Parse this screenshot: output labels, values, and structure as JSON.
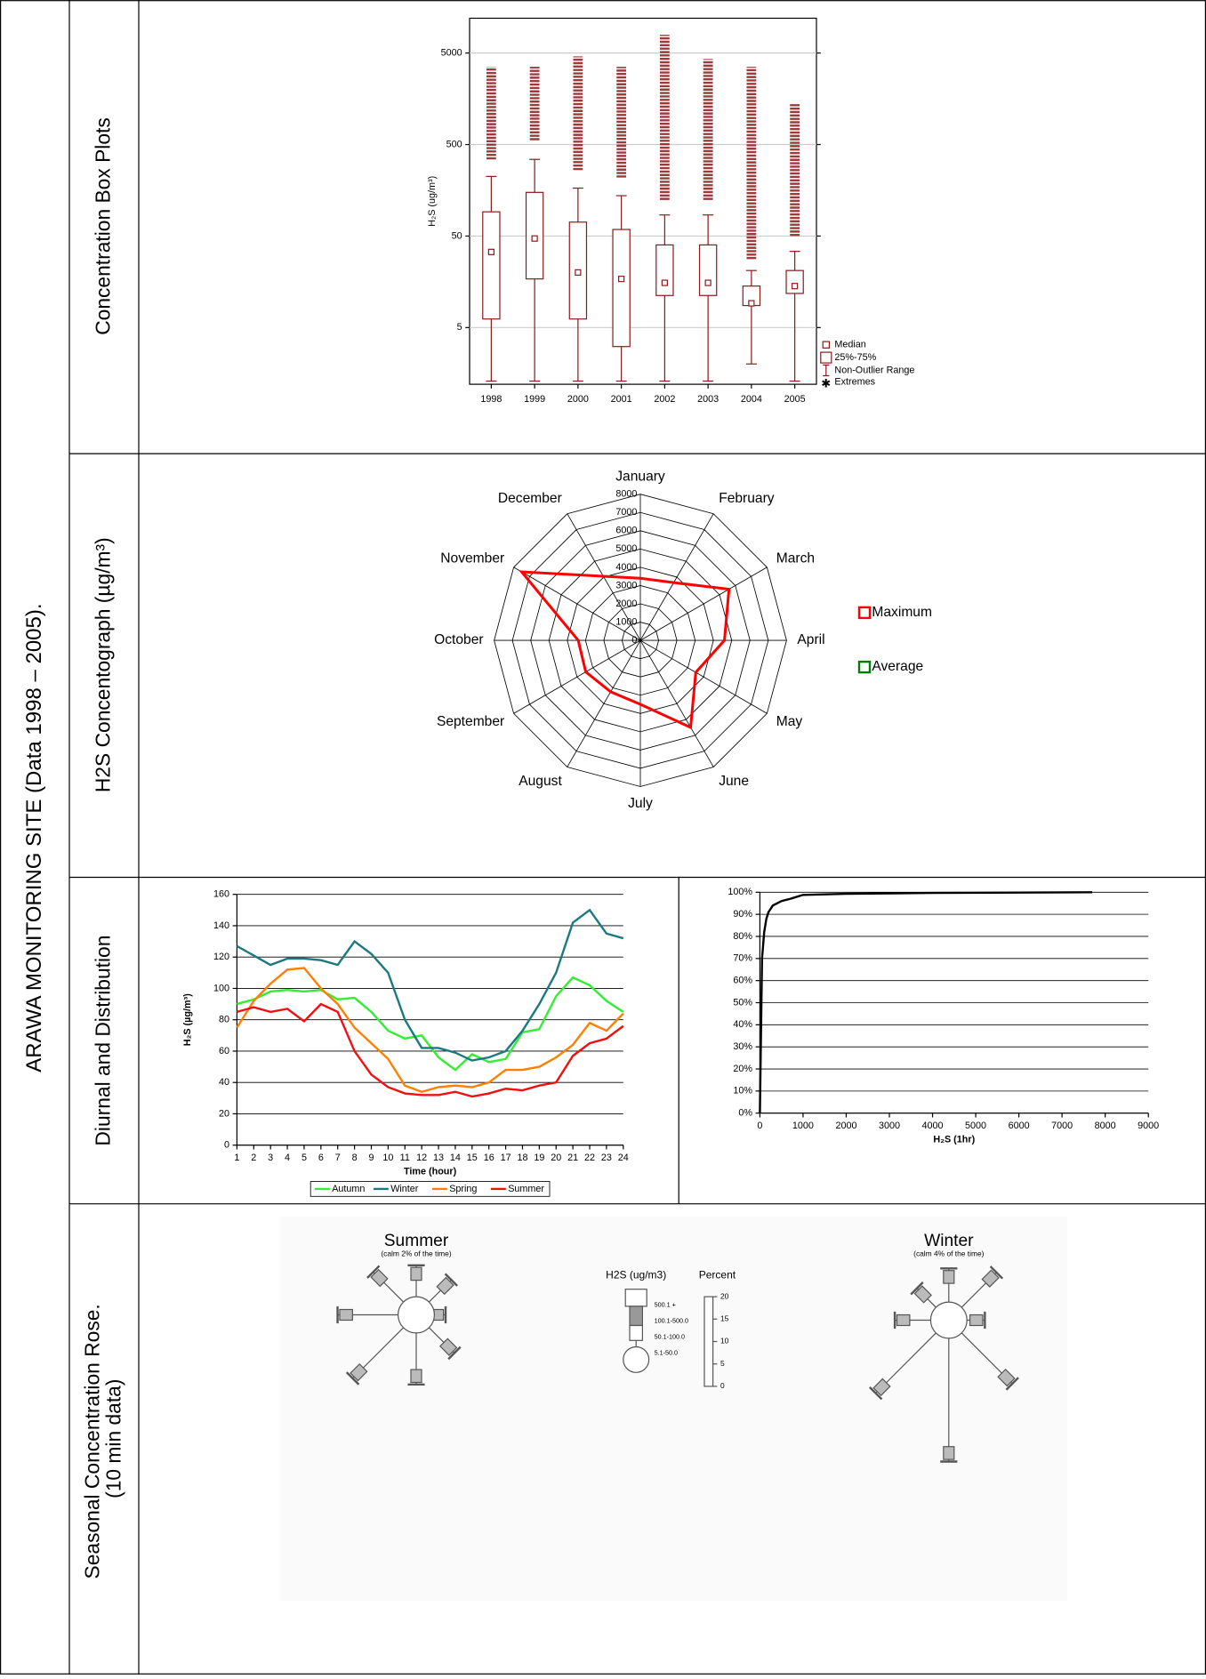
{
  "document": {
    "side_title": "ARAWA MONITORING SITE (Data 1998 – 2005).",
    "row_labels": [
      "Concentration Box Plots",
      "H2S Concentograph (µg/m³)",
      "Diurnal and Distribution",
      [
        "Seasonal Concentration Rose.",
        "(10 min data)"
      ]
    ]
  },
  "chart_data": [
    {
      "type": "box",
      "ylabel": "H₂S (ug/m³)",
      "categories": [
        "1998",
        "1999",
        "2000",
        "2001",
        "2002",
        "2003",
        "2004",
        "2005"
      ],
      "color": "#8b1a1a",
      "log_scale": true,
      "grid": true,
      "ylim": [
        1.2,
        12000
      ],
      "yticks": [
        5,
        50,
        500,
        5000
      ],
      "median": [
        33.5,
        47,
        20,
        17,
        15.4,
        15.4,
        9.2,
        14.2
      ],
      "q1": [
        6.2,
        17,
        6.2,
        3.1,
        11.2,
        11.2,
        8.7,
        11.8
      ],
      "q3": [
        92,
        150,
        71,
        59,
        40,
        40,
        14.2,
        21
      ],
      "whisker_low": [
        1.3,
        1.3,
        1.3,
        1.3,
        1.3,
        1.3,
        2,
        1.3
      ],
      "whisker_high": [
        224,
        344,
        167,
        138,
        85,
        85,
        21,
        34
      ],
      "extremes_low": [
        344,
        557,
        263,
        218,
        124,
        124,
        28,
        50
      ],
      "extremes_high": [
        3530,
        3530,
        4600,
        3530,
        7900,
        4300,
        3530,
        1420
      ],
      "legend": [
        "Median",
        "25%-75%",
        "Non-Outlier Range",
        "Extremes"
      ]
    },
    {
      "type": "radar",
      "categories": [
        "January",
        "February",
        "March",
        "April",
        "May",
        "June",
        "July",
        "August",
        "September",
        "October",
        "November",
        "December"
      ],
      "rlim": [
        0,
        8000
      ],
      "rticks": [
        0,
        1000,
        2000,
        3000,
        4000,
        5000,
        6000,
        7000,
        8000
      ],
      "series": [
        {
          "name": "Maximum",
          "color": "#ff0000",
          "values": [
            3400,
            3650,
            5600,
            4600,
            3500,
            5500,
            3500,
            3250,
            3450,
            3400,
            7500,
            4050
          ]
        },
        {
          "name": "Average",
          "color": "#008000",
          "values": [
            null,
            null,
            null,
            null,
            null,
            null,
            null,
            null,
            null,
            null,
            null,
            null
          ]
        }
      ]
    },
    {
      "type": "line",
      "xlabel": "Time (hour)",
      "ylabel": "H₂S (µg/m³)",
      "grid": true,
      "legend": "bottom",
      "x": [
        1,
        2,
        3,
        4,
        5,
        6,
        7,
        8,
        9,
        10,
        11,
        12,
        13,
        14,
        15,
        16,
        17,
        18,
        19,
        20,
        21,
        22,
        23,
        24
      ],
      "xlim": [
        1,
        24
      ],
      "xticks": [
        1,
        2,
        3,
        4,
        5,
        6,
        7,
        8,
        9,
        10,
        11,
        12,
        13,
        14,
        15,
        16,
        17,
        18,
        19,
        20,
        21,
        22,
        23,
        24
      ],
      "ylim": [
        0,
        160
      ],
      "yticks": [
        0,
        20,
        40,
        60,
        80,
        100,
        120,
        140,
        160
      ],
      "series": [
        {
          "name": "Autumn",
          "color": "#33ee33",
          "values": [
            90,
            93,
            98,
            99,
            98,
            99,
            93,
            94,
            85,
            73,
            68,
            70,
            56,
            48,
            58,
            53,
            55,
            72,
            74,
            95,
            107,
            102,
            92,
            85
          ]
        },
        {
          "name": "Winter",
          "color": "#1a7a80",
          "values": [
            127,
            121,
            115,
            119,
            119,
            118,
            115,
            130,
            122,
            110,
            80,
            62,
            62,
            59,
            54,
            56,
            60,
            73,
            90,
            110,
            142,
            150,
            135,
            132
          ]
        },
        {
          "name": "Spring",
          "color": "#ff8000",
          "values": [
            75,
            92,
            103,
            112,
            113,
            100,
            90,
            75,
            65,
            55,
            38,
            34,
            37,
            38,
            37,
            40,
            48,
            48,
            50,
            56,
            64,
            78,
            73,
            84
          ]
        },
        {
          "name": "Summer",
          "color": "#ee1111",
          "values": [
            85,
            88,
            85,
            87,
            79,
            90,
            85,
            60,
            45,
            37,
            33,
            32,
            32,
            34,
            31,
            33,
            36,
            35,
            38,
            40,
            57,
            65,
            68,
            76
          ]
        }
      ]
    },
    {
      "type": "line",
      "xlabel": "H₂S (1hr)",
      "grid": true,
      "x": [
        0,
        50,
        100,
        150,
        200,
        300,
        500,
        700,
        1000,
        2000,
        4000,
        7700
      ],
      "xlim": [
        0,
        9000
      ],
      "xticks": [
        0,
        1000,
        2000,
        3000,
        4000,
        5000,
        6000,
        7000,
        8000,
        9000
      ],
      "ylim": [
        0,
        100
      ],
      "yticks": [
        {
          "value": 0,
          "label": "0%"
        },
        {
          "value": 10,
          "label": "10%"
        },
        {
          "value": 20,
          "label": "20%"
        },
        {
          "value": 30,
          "label": "30%"
        },
        {
          "value": 40,
          "label": "40%"
        },
        {
          "value": 50,
          "label": "50%"
        },
        {
          "value": 60,
          "label": "60%"
        },
        {
          "value": 70,
          "label": "70%"
        },
        {
          "value": 80,
          "label": "80%"
        },
        {
          "value": 90,
          "label": "90%"
        },
        {
          "value": 100,
          "label": "100%"
        }
      ],
      "series": [
        {
          "color": "#000000",
          "values": [
            0,
            70,
            82,
            88,
            91,
            94,
            96,
            97,
            98.8,
            99.3,
            99.7,
            100
          ]
        }
      ]
    },
    {
      "type": "rose",
      "title": "Summer",
      "subtitle": "(calm 2% of the time)",
      "color": "#555555",
      "values": [
        7,
        7,
        2.5,
        8,
        11.5,
        16,
        13.5,
        9.5
      ]
    },
    {
      "type": "rose",
      "title": "Winter",
      "subtitle": "(calm 4% of the time)",
      "color": "#555555",
      "values": [
        7.5,
        11,
        4,
        16,
        27.5,
        19,
        8,
        6
      ]
    }
  ],
  "rose_legend": {
    "title": "H2S (ug/m3)",
    "scale_title": "Percent",
    "classes": [
      "500.1 +",
      "100.1-500.0",
      "50.1-100.0",
      "5.1-50.0"
    ],
    "ylim": [
      0,
      20
    ],
    "yticks": [
      0,
      5,
      10,
      15,
      20
    ]
  }
}
